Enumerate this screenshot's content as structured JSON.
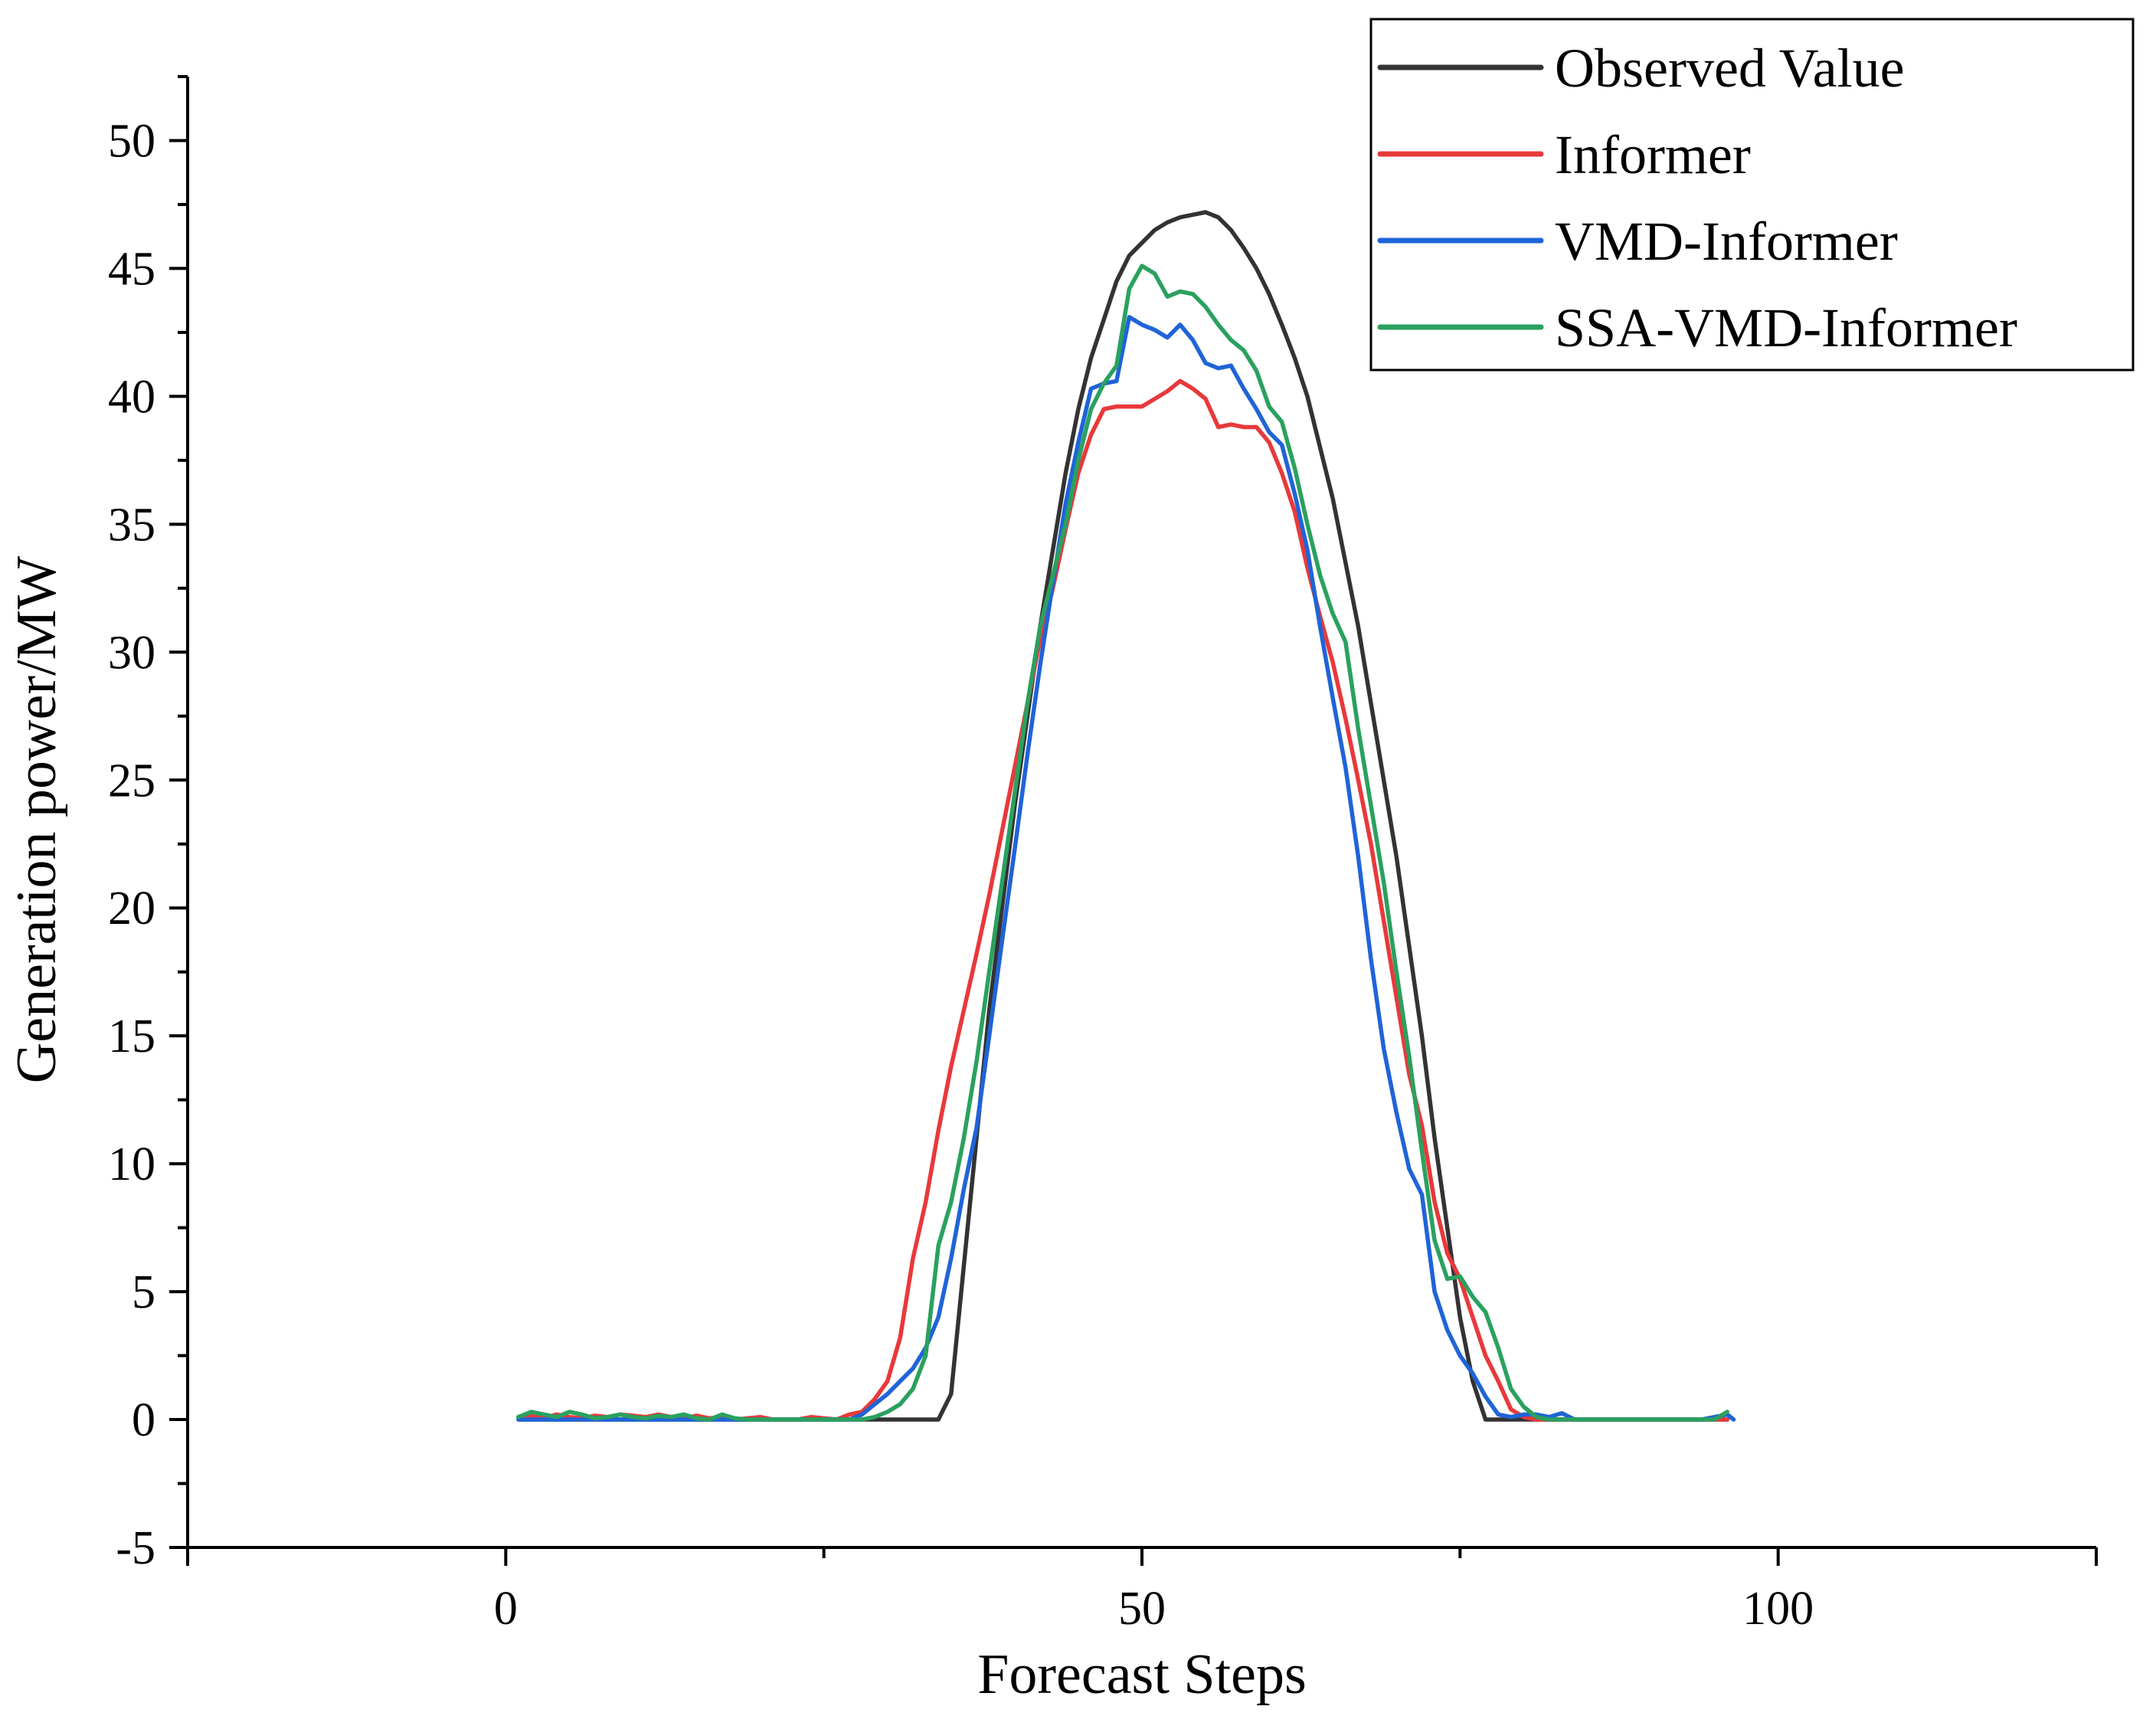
{
  "chart_data": {
    "type": "line",
    "title": "",
    "xlabel": "Forecast Steps",
    "ylabel": "Generation power/MW",
    "xlim": [
      -25,
      125
    ],
    "ylim": [
      -5,
      52.5
    ],
    "x_ticks": [
      0,
      50,
      100
    ],
    "y_ticks": [
      -5,
      0,
      5,
      10,
      15,
      20,
      25,
      30,
      35,
      40,
      45,
      50
    ],
    "x_tick_labels": [
      "0",
      "50",
      "100"
    ],
    "y_tick_labels": [
      "-5",
      "0",
      "5",
      "10",
      "15",
      "20",
      "25",
      "30",
      "35",
      "40",
      "45",
      "50"
    ],
    "grid": false,
    "legend_position": "top-right",
    "series": [
      {
        "name": "Observed Value",
        "color": "#333333",
        "points": [
          [
            1,
            0
          ],
          [
            10,
            0
          ],
          [
            20,
            0
          ],
          [
            30,
            0
          ],
          [
            33,
            0
          ],
          [
            34,
            0
          ],
          [
            35,
            1
          ],
          [
            36,
            6
          ],
          [
            37,
            11
          ],
          [
            38,
            16
          ],
          [
            39,
            20
          ],
          [
            40,
            24
          ],
          [
            41,
            27.5
          ],
          [
            42,
            31
          ],
          [
            43,
            34
          ],
          [
            44,
            37
          ],
          [
            45,
            39.5
          ],
          [
            46,
            41.5
          ],
          [
            47,
            43
          ],
          [
            48,
            44.5
          ],
          [
            49,
            45.5
          ],
          [
            50,
            46
          ],
          [
            51,
            46.5
          ],
          [
            52,
            46.8
          ],
          [
            53,
            47
          ],
          [
            54,
            47.1
          ],
          [
            55,
            47.2
          ],
          [
            56,
            47
          ],
          [
            57,
            46.5
          ],
          [
            58,
            45.8
          ],
          [
            59,
            45
          ],
          [
            60,
            44
          ],
          [
            61,
            42.8
          ],
          [
            62,
            41.5
          ],
          [
            63,
            40
          ],
          [
            64,
            38
          ],
          [
            65,
            36
          ],
          [
            66,
            33.5
          ],
          [
            67,
            31
          ],
          [
            68,
            28
          ],
          [
            69,
            25
          ],
          [
            70,
            22
          ],
          [
            71,
            18.5
          ],
          [
            72,
            15
          ],
          [
            73,
            11
          ],
          [
            74,
            7.5
          ],
          [
            75,
            4
          ],
          [
            76,
            1.5
          ],
          [
            77,
            0
          ],
          [
            80,
            0
          ],
          [
            90,
            0
          ],
          [
            96,
            0
          ]
        ]
      },
      {
        "name": "Informer",
        "color": "#e8393b",
        "points": [
          [
            1,
            0.1
          ],
          [
            2,
            0.15
          ],
          [
            3,
            0.05
          ],
          [
            4,
            0.2
          ],
          [
            5,
            0.1
          ],
          [
            6,
            0.05
          ],
          [
            7,
            0.15
          ],
          [
            8,
            0.1
          ],
          [
            9,
            0.2
          ],
          [
            10,
            0.15
          ],
          [
            11,
            0.1
          ],
          [
            12,
            0.2
          ],
          [
            13,
            0.1
          ],
          [
            14,
            0.05
          ],
          [
            15,
            0.15
          ],
          [
            16,
            0.05
          ],
          [
            17,
            0.1
          ],
          [
            18,
            0
          ],
          [
            19,
            0.05
          ],
          [
            20,
            0.1
          ],
          [
            21,
            0
          ],
          [
            22,
            0
          ],
          [
            23,
            0
          ],
          [
            24,
            0.1
          ],
          [
            25,
            0.05
          ],
          [
            26,
            0
          ],
          [
            27,
            0.2
          ],
          [
            28,
            0.3
          ],
          [
            29,
            0.8
          ],
          [
            30,
            1.5
          ],
          [
            31,
            3.2
          ],
          [
            32,
            6.3
          ],
          [
            33,
            8.5
          ],
          [
            34,
            11.3
          ],
          [
            35,
            13.8
          ],
          [
            36,
            16
          ],
          [
            37,
            18.2
          ],
          [
            38,
            20.5
          ],
          [
            39,
            23
          ],
          [
            40,
            25.5
          ],
          [
            41,
            28
          ],
          [
            42,
            30.5
          ],
          [
            43,
            32.5
          ],
          [
            44,
            34.8
          ],
          [
            45,
            37
          ],
          [
            46,
            38.5
          ],
          [
            47,
            39.5
          ],
          [
            48,
            39.6
          ],
          [
            49,
            39.6
          ],
          [
            50,
            39.6
          ],
          [
            51,
            39.9
          ],
          [
            52,
            40.2
          ],
          [
            53,
            40.6
          ],
          [
            54,
            40.3
          ],
          [
            55,
            39.9
          ],
          [
            56,
            38.8
          ],
          [
            57,
            38.9
          ],
          [
            58,
            38.8
          ],
          [
            59,
            38.8
          ],
          [
            60,
            38.2
          ],
          [
            61,
            37
          ],
          [
            62,
            35.5
          ],
          [
            63,
            33.3
          ],
          [
            64,
            31.4
          ],
          [
            65,
            29.6
          ],
          [
            66,
            27.4
          ],
          [
            67,
            25
          ],
          [
            68,
            22.5
          ],
          [
            69,
            19.5
          ],
          [
            70,
            16.5
          ],
          [
            71,
            13.5
          ],
          [
            72,
            11.5
          ],
          [
            73,
            8.5
          ],
          [
            74,
            6.5
          ],
          [
            75,
            5.5
          ],
          [
            76,
            4
          ],
          [
            77,
            2.5
          ],
          [
            78,
            1.5
          ],
          [
            79,
            0.4
          ],
          [
            80,
            0.1
          ],
          [
            81,
            0
          ],
          [
            85,
            0
          ],
          [
            90,
            0
          ],
          [
            96,
            0
          ]
        ]
      },
      {
        "name": "VMD-Informer",
        "color": "#1f64d8",
        "points": [
          [
            1,
            0
          ],
          [
            5,
            0
          ],
          [
            10,
            0
          ],
          [
            15,
            0
          ],
          [
            20,
            0
          ],
          [
            25,
            0
          ],
          [
            27,
            0
          ],
          [
            28,
            0.2
          ],
          [
            29,
            0.6
          ],
          [
            30,
            1
          ],
          [
            31,
            1.5
          ],
          [
            32,
            2
          ],
          [
            33,
            2.8
          ],
          [
            34,
            4
          ],
          [
            35,
            6.3
          ],
          [
            36,
            9
          ],
          [
            37,
            11.4
          ],
          [
            38,
            15
          ],
          [
            39,
            18.7
          ],
          [
            40,
            22.3
          ],
          [
            41,
            26
          ],
          [
            42,
            29.5
          ],
          [
            43,
            32.7
          ],
          [
            44,
            35.8
          ],
          [
            45,
            38.2
          ],
          [
            46,
            40.3
          ],
          [
            47,
            40.5
          ],
          [
            48,
            40.6
          ],
          [
            49,
            43.1
          ],
          [
            50,
            42.8
          ],
          [
            51,
            42.6
          ],
          [
            52,
            42.3
          ],
          [
            53,
            42.8
          ],
          [
            54,
            42.2
          ],
          [
            55,
            41.3
          ],
          [
            56,
            41.1
          ],
          [
            57,
            41.2
          ],
          [
            58,
            40.3
          ],
          [
            59,
            39.5
          ],
          [
            60,
            38.6
          ],
          [
            61,
            38.1
          ],
          [
            62,
            36.2
          ],
          [
            63,
            34
          ],
          [
            64,
            31
          ],
          [
            65,
            28.2
          ],
          [
            66,
            25.5
          ],
          [
            67,
            22
          ],
          [
            68,
            18
          ],
          [
            69,
            14.5
          ],
          [
            70,
            12
          ],
          [
            71,
            9.8
          ],
          [
            72,
            8.8
          ],
          [
            73,
            5
          ],
          [
            74,
            3.5
          ],
          [
            75,
            2.5
          ],
          [
            76,
            1.8
          ],
          [
            77,
            0.9
          ],
          [
            78,
            0.2
          ],
          [
            79,
            0.1
          ],
          [
            80,
            0.2
          ],
          [
            81,
            0.2
          ],
          [
            82,
            0.1
          ],
          [
            83,
            0.25
          ],
          [
            84,
            0
          ],
          [
            85,
            0
          ],
          [
            90,
            0
          ],
          [
            94,
            0
          ],
          [
            95,
            0.1
          ],
          [
            96,
            0.2
          ],
          [
            96.5,
            0
          ]
        ]
      },
      {
        "name": "SSA-VMD-Informer",
        "color": "#2aa15f",
        "points": [
          [
            1,
            0.1
          ],
          [
            2,
            0.3
          ],
          [
            3,
            0.2
          ],
          [
            4,
            0.1
          ],
          [
            5,
            0.3
          ],
          [
            6,
            0.2
          ],
          [
            7,
            0.05
          ],
          [
            8,
            0.1
          ],
          [
            9,
            0.2
          ],
          [
            10,
            0.1
          ],
          [
            11,
            0.05
          ],
          [
            12,
            0.15
          ],
          [
            13,
            0.1
          ],
          [
            14,
            0.2
          ],
          [
            15,
            0.05
          ],
          [
            16,
            0
          ],
          [
            17,
            0.2
          ],
          [
            18,
            0.05
          ],
          [
            19,
            0
          ],
          [
            20,
            0
          ],
          [
            21,
            0
          ],
          [
            25,
            0
          ],
          [
            28,
            0
          ],
          [
            29,
            0.1
          ],
          [
            30,
            0.3
          ],
          [
            31,
            0.6
          ],
          [
            32,
            1.2
          ],
          [
            33,
            2.5
          ],
          [
            34,
            6.8
          ],
          [
            35,
            8.5
          ],
          [
            36,
            11
          ],
          [
            37,
            14
          ],
          [
            38,
            17.5
          ],
          [
            39,
            21
          ],
          [
            40,
            24.5
          ],
          [
            41,
            28
          ],
          [
            42,
            31
          ],
          [
            43,
            33
          ],
          [
            44,
            35
          ],
          [
            45,
            37.5
          ],
          [
            46,
            39.5
          ],
          [
            47,
            40.5
          ],
          [
            48,
            41.2
          ],
          [
            49,
            44.2
          ],
          [
            50,
            45.1
          ],
          [
            51,
            44.8
          ],
          [
            52,
            43.9
          ],
          [
            53,
            44.1
          ],
          [
            54,
            44
          ],
          [
            55,
            43.5
          ],
          [
            56,
            42.8
          ],
          [
            57,
            42.2
          ],
          [
            58,
            41.8
          ],
          [
            59,
            41
          ],
          [
            60,
            39.6
          ],
          [
            61,
            39
          ],
          [
            62,
            37.2
          ],
          [
            63,
            35
          ],
          [
            64,
            33
          ],
          [
            65,
            31.5
          ],
          [
            66,
            30.4
          ],
          [
            67,
            27
          ],
          [
            68,
            24
          ],
          [
            69,
            21
          ],
          [
            70,
            17.5
          ],
          [
            71,
            14.2
          ],
          [
            72,
            10.5
          ],
          [
            73,
            7
          ],
          [
            74,
            5.5
          ],
          [
            75,
            5.6
          ],
          [
            76,
            4.8
          ],
          [
            77,
            4.2
          ],
          [
            78,
            2.8
          ],
          [
            79,
            1.2
          ],
          [
            80,
            0.5
          ],
          [
            81,
            0.1
          ],
          [
            82,
            0
          ],
          [
            85,
            0
          ],
          [
            90,
            0
          ],
          [
            95,
            0
          ],
          [
            96,
            0.3
          ]
        ]
      }
    ]
  }
}
